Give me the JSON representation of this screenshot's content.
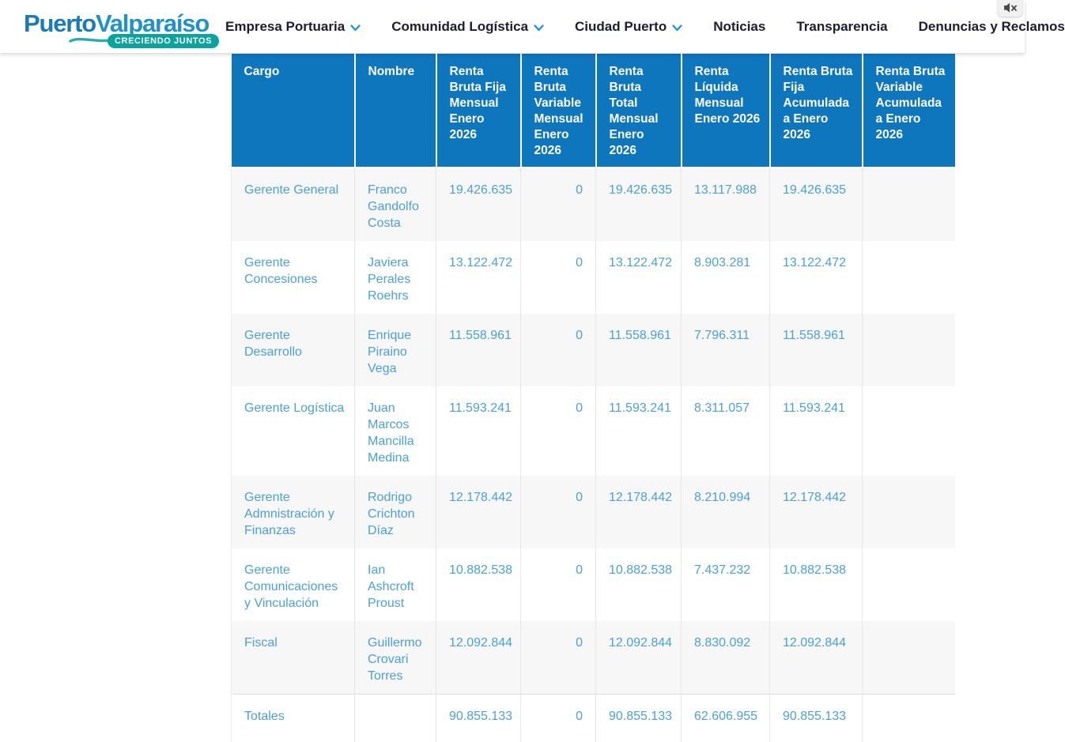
{
  "logo": {
    "part1": "Puerto",
    "part2": "Valparaíso",
    "tagline": "CRECIENDO JUNTOS"
  },
  "nav": {
    "items": [
      {
        "label": "Empresa Portuaria",
        "has_dropdown": true
      },
      {
        "label": "Comunidad Logística",
        "has_dropdown": true
      },
      {
        "label": "Ciudad Puerto",
        "has_dropdown": true
      },
      {
        "label": "Noticias",
        "has_dropdown": false
      },
      {
        "label": "Transparencia",
        "has_dropdown": false
      },
      {
        "label": "Denuncias y Reclamos",
        "has_dropdown": false
      }
    ]
  },
  "table": {
    "columns": [
      "Cargo",
      "Nombre",
      "Renta Bruta Fija Mensual Enero 2026",
      "Renta Bruta Variable Mensual Enero 2026",
      "Renta Bruta Total Mensual Enero 2026",
      "Renta Líquida Mensual Enero 2026",
      "Renta Bruta Fija Acumulada a Enero 2026",
      "Renta Bruta Variable Acumulada a Enero 2026"
    ],
    "rows": [
      {
        "cargo": "Gerente General",
        "nombre": "Franco Gandolfo Costa",
        "values": [
          "19.426.635",
          "0",
          "19.426.635",
          "13.117.988",
          "19.426.635",
          ""
        ]
      },
      {
        "cargo": "Gerente Concesiones",
        "nombre": "Javiera Perales Roehrs",
        "values": [
          "13.122.472",
          "0",
          "13.122.472",
          "8.903.281",
          "13.122.472",
          ""
        ]
      },
      {
        "cargo": "Gerente Desarrollo",
        "nombre": "Enrique Piraino Vega",
        "values": [
          "11.558.961",
          "0",
          "11.558.961",
          "7.796.311",
          "11.558.961",
          ""
        ]
      },
      {
        "cargo": "Gerente Logística",
        "nombre": "Juan Marcos Mancilla Medina",
        "values": [
          "11.593.241",
          "0",
          "11.593.241",
          "8.311.057",
          "11.593.241",
          ""
        ]
      },
      {
        "cargo": "Gerente Admnistración y Finanzas",
        "nombre": "Rodrigo Crichton Díaz",
        "values": [
          "12.178.442",
          "0",
          "12.178.442",
          "8.210.994",
          "12.178.442",
          ""
        ]
      },
      {
        "cargo": "Gerente Comunicaciones y Vinculación",
        "nombre": "Ian Ashcroft Proust",
        "values": [
          "10.882.538",
          "0",
          "10.882.538",
          "7.437.232",
          "10.882.538",
          ""
        ]
      },
      {
        "cargo": "Fiscal",
        "nombre": "Guillermo Crovari Torres",
        "values": [
          "12.092.844",
          "0",
          "12.092.844",
          "8.830.092",
          "12.092.844",
          ""
        ]
      }
    ],
    "totals": {
      "cargo": "Totales",
      "nombre": "",
      "values": [
        "90.855.133",
        "0",
        "90.855.133",
        "62.606.955",
        "90.855.133",
        ""
      ]
    }
  },
  "icons": {
    "nav_dropdown": "chevron-down-icon",
    "corner_overlay": "screen-capture-icon",
    "logo_wave": "wave-icon"
  },
  "colors": {
    "header_bg": "#0e76bd",
    "cell_text": "#4ba1d7",
    "nav_text": "#1d1c30",
    "chevron": "#1f96d6",
    "logo_blue_dark": "#1b7ab8",
    "logo_blue_light": "#2191c6",
    "logo_teal": "#0ca39e",
    "row_stripe": "#f7f7f7"
  }
}
